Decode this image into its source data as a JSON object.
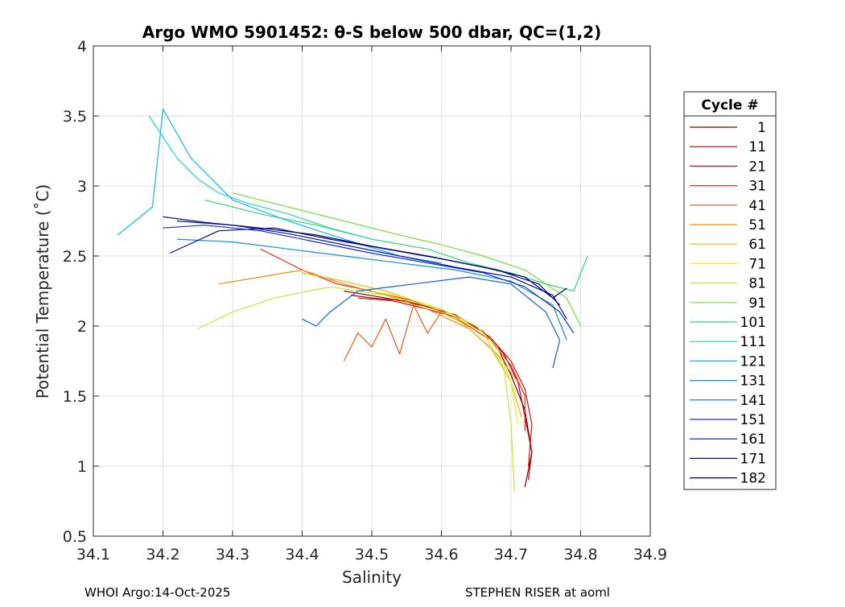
{
  "chart_data": {
    "type": "line",
    "title": "Argo WMO 5901452: θ-S below 500 dbar,  QC=(1,2)",
    "xlabel": "Salinity",
    "ylabel": "Potential Temperature (˚C)",
    "xlim": [
      34.1,
      34.9
    ],
    "ylim": [
      0.5,
      4
    ],
    "xticks": [
      "34.1",
      "34.2",
      "34.3",
      "34.4",
      "34.5",
      "34.6",
      "34.7",
      "34.8",
      "34.9"
    ],
    "yticks": [
      "0.5",
      "1",
      "1.5",
      "2",
      "2.5",
      "3",
      "3.5",
      "4"
    ],
    "grid": true,
    "legend": {
      "title": "Cycle #",
      "position": "right",
      "entries": [
        {
          "label": "1",
          "color": "#800000"
        },
        {
          "label": "11",
          "color": "#b30000"
        },
        {
          "label": "21",
          "color": "#d01010"
        },
        {
          "label": "31",
          "color": "#e83018"
        },
        {
          "label": "41",
          "color": "#f05a10"
        },
        {
          "label": "51",
          "color": "#f08c10"
        },
        {
          "label": "61",
          "color": "#e8b810"
        },
        {
          "label": "71",
          "color": "#f0f020"
        },
        {
          "label": "81",
          "color": "#b8f030"
        },
        {
          "label": "91",
          "color": "#70e040"
        },
        {
          "label": "101",
          "color": "#30d870"
        },
        {
          "label": "111",
          "color": "#20d8b8"
        },
        {
          "label": "121",
          "color": "#10b8f0"
        },
        {
          "label": "131",
          "color": "#1090d8"
        },
        {
          "label": "141",
          "color": "#1060e8"
        },
        {
          "label": "151",
          "color": "#1030d0"
        },
        {
          "label": "161",
          "color": "#0818a8"
        },
        {
          "label": "171",
          "color": "#080890"
        },
        {
          "label": "182",
          "color": "#000070"
        }
      ]
    },
    "series": [
      {
        "name": "1",
        "color": "#800000",
        "s": [
          34.47,
          34.5,
          34.55,
          34.6,
          34.65,
          34.68,
          34.7,
          34.72,
          34.73,
          34.72
        ],
        "t": [
          2.22,
          2.2,
          2.18,
          2.12,
          2.0,
          1.85,
          1.65,
          1.4,
          1.1,
          0.85
        ]
      },
      {
        "name": "11",
        "color": "#b30000",
        "s": [
          34.46,
          34.52,
          34.57,
          34.62,
          34.66,
          34.69,
          34.71,
          34.72,
          34.73,
          34.725
        ],
        "t": [
          2.25,
          2.2,
          2.15,
          2.08,
          1.96,
          1.8,
          1.6,
          1.35,
          1.1,
          0.9
        ]
      },
      {
        "name": "21",
        "color": "#d01010",
        "s": [
          34.48,
          34.53,
          34.58,
          34.63,
          34.67,
          34.7,
          34.72,
          34.73,
          34.725
        ],
        "t": [
          2.2,
          2.18,
          2.12,
          2.05,
          1.92,
          1.75,
          1.55,
          1.3,
          1.0
        ]
      },
      {
        "name": "31",
        "color": "#e83018",
        "s": [
          34.34,
          34.4,
          34.45,
          34.5,
          34.56,
          34.62,
          34.67,
          34.7,
          34.72,
          34.72
        ],
        "t": [
          2.55,
          2.4,
          2.3,
          2.25,
          2.18,
          2.06,
          1.9,
          1.72,
          1.5,
          1.25
        ]
      },
      {
        "name": "41",
        "color": "#f05a10",
        "s": [
          34.46,
          34.48,
          34.5,
          34.52,
          34.54,
          34.56,
          34.58,
          34.6
        ],
        "t": [
          1.75,
          1.95,
          1.85,
          2.05,
          1.8,
          2.15,
          1.95,
          2.1
        ]
      },
      {
        "name": "51",
        "color": "#f08c10",
        "s": [
          34.28,
          34.34,
          34.4,
          34.46,
          34.52,
          34.58,
          34.64,
          34.68,
          34.71
        ],
        "t": [
          2.3,
          2.35,
          2.4,
          2.3,
          2.22,
          2.12,
          1.98,
          1.8,
          1.6
        ]
      },
      {
        "name": "61",
        "color": "#e8b810",
        "s": [
          34.4,
          34.46,
          34.52,
          34.58,
          34.63,
          34.67,
          34.7,
          34.715
        ],
        "t": [
          2.38,
          2.32,
          2.25,
          2.15,
          2.02,
          1.85,
          1.6,
          1.35
        ]
      },
      {
        "name": "71",
        "color": "#f0f020",
        "s": [
          34.5,
          34.55,
          34.6,
          34.65,
          34.68,
          34.7,
          34.71
        ],
        "t": [
          2.25,
          2.2,
          2.12,
          2.0,
          1.85,
          1.6,
          1.3
        ]
      },
      {
        "name": "81",
        "color": "#b8f030",
        "s": [
          34.25,
          34.3,
          34.36,
          34.44,
          34.52,
          34.6,
          34.66,
          34.69,
          34.7,
          34.705
        ],
        "t": [
          1.98,
          2.1,
          2.2,
          2.28,
          2.22,
          2.12,
          1.95,
          1.7,
          1.3,
          0.82
        ]
      },
      {
        "name": "91",
        "color": "#70e040",
        "s": [
          34.3,
          34.38,
          34.46,
          34.54,
          34.6,
          34.66,
          34.72,
          34.78,
          34.8
        ],
        "t": [
          2.95,
          2.85,
          2.75,
          2.65,
          2.58,
          2.5,
          2.4,
          2.2,
          2.0
        ]
      },
      {
        "name": "101",
        "color": "#30d870",
        "s": [
          34.26,
          34.34,
          34.42,
          34.5,
          34.58,
          34.64,
          34.7,
          34.75,
          34.79,
          34.81
        ],
        "t": [
          2.9,
          2.8,
          2.72,
          2.62,
          2.55,
          2.45,
          2.38,
          2.3,
          2.25,
          2.5
        ]
      },
      {
        "name": "111",
        "color": "#20d8b8",
        "s": [
          34.18,
          34.2,
          34.22,
          34.25,
          34.28,
          34.32,
          34.38,
          34.44,
          34.5
        ],
        "t": [
          3.5,
          3.35,
          3.2,
          3.05,
          2.95,
          2.88,
          2.8,
          2.7,
          2.62
        ]
      },
      {
        "name": "121",
        "color": "#10b8f0",
        "s": [
          34.135,
          34.16,
          34.185,
          34.2,
          34.24,
          34.3,
          34.38,
          34.46,
          34.54,
          34.6
        ],
        "t": [
          2.65,
          2.75,
          2.85,
          3.55,
          3.2,
          2.9,
          2.75,
          2.62,
          2.5,
          2.45
        ]
      },
      {
        "name": "131",
        "color": "#1090d8",
        "s": [
          34.22,
          34.3,
          34.38,
          34.46,
          34.54,
          34.62,
          34.7,
          34.76,
          34.78
        ],
        "t": [
          2.62,
          2.6,
          2.55,
          2.5,
          2.45,
          2.4,
          2.32,
          2.15,
          1.9
        ]
      },
      {
        "name": "141",
        "color": "#1060e8",
        "s": [
          34.4,
          34.42,
          34.44,
          34.48,
          34.56,
          34.64,
          34.7,
          34.75,
          34.77,
          34.76
        ],
        "t": [
          2.05,
          2.0,
          2.1,
          2.25,
          2.3,
          2.35,
          2.3,
          2.1,
          1.9,
          1.7
        ]
      },
      {
        "name": "151",
        "color": "#1030d0",
        "s": [
          34.2,
          34.26,
          34.34,
          34.42,
          34.5,
          34.58,
          34.66,
          34.72,
          34.77,
          34.79
        ],
        "t": [
          2.7,
          2.72,
          2.68,
          2.6,
          2.52,
          2.45,
          2.38,
          2.28,
          2.1,
          1.95
        ]
      },
      {
        "name": "161",
        "color": "#0818a8",
        "s": [
          34.22,
          34.3,
          34.38,
          34.46,
          34.54,
          34.62,
          34.7,
          34.76,
          34.78
        ],
        "t": [
          2.75,
          2.72,
          2.66,
          2.58,
          2.5,
          2.42,
          2.35,
          2.22,
          2.05
        ]
      },
      {
        "name": "171",
        "color": "#080890",
        "s": [
          34.21,
          34.28,
          34.36,
          34.44,
          34.52,
          34.6,
          34.68,
          34.74,
          34.77
        ],
        "t": [
          2.52,
          2.68,
          2.7,
          2.62,
          2.55,
          2.48,
          2.4,
          2.3,
          2.15
        ]
      },
      {
        "name": "182",
        "color": "#000070",
        "s": [
          34.2,
          34.26,
          34.34,
          34.42,
          34.5,
          34.58,
          34.66,
          34.72,
          34.76,
          34.78
        ],
        "t": [
          2.78,
          2.74,
          2.7,
          2.65,
          2.57,
          2.5,
          2.42,
          2.35,
          2.2,
          2.27
        ]
      }
    ]
  },
  "footer": {
    "left": "WHOI Argo:14-Oct-2025",
    "right": "STEPHEN RISER at aoml"
  }
}
